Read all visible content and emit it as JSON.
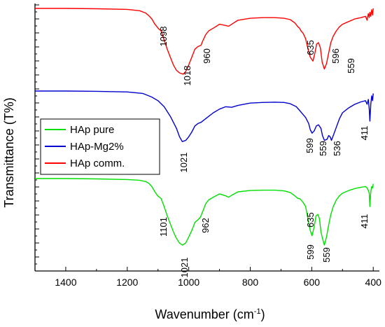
{
  "chart_data": {
    "type": "line",
    "xlabel": "Wavenumber (cm",
    "xlabel_sup": "-1",
    "xlabel_close": ")",
    "ylabel": "Transmittance (T%)",
    "xlim": [
      1500,
      380
    ],
    "x_reversed": true,
    "xticks": [
      1400,
      1200,
      1000,
      800,
      600,
      400
    ],
    "yticks_labeled": false,
    "grid": false,
    "legend_position": "left-middle",
    "series": [
      {
        "name": "HAp pure",
        "color": "#00e000",
        "peak_labels": [
          "1101",
          "1021",
          "962",
          "635",
          "599",
          "559",
          "411"
        ],
        "x": [
          1500,
          1400,
          1300,
          1200,
          1160,
          1140,
          1130,
          1120,
          1110,
          1101,
          1090,
          1080,
          1070,
          1060,
          1050,
          1040,
          1030,
          1021,
          1010,
          1000,
          990,
          980,
          970,
          962,
          955,
          945,
          935,
          920,
          900,
          880,
          870,
          860,
          840,
          800,
          760,
          720,
          690,
          670,
          655,
          645,
          640,
          635,
          628,
          620,
          612,
          605,
          599,
          592,
          586,
          580,
          575,
          570,
          565,
          559,
          552,
          545,
          538,
          530,
          520,
          510,
          500,
          480,
          460,
          440,
          425,
          420,
          416,
          413,
          411,
          408,
          405,
          402,
          400
        ],
        "y": [
          100,
          100,
          99.5,
          98.5,
          97.5,
          95.5,
          93,
          88,
          80,
          74,
          70,
          58,
          44,
          32,
          20,
          10,
          3,
          0,
          3,
          12,
          22,
          34,
          38,
          42,
          50,
          62,
          68,
          72,
          77,
          74,
          72,
          75,
          80,
          82,
          82.5,
          82.5,
          81.5,
          79,
          74,
          70,
          70,
          68,
          64,
          58,
          38,
          22,
          14,
          28,
          44,
          46,
          40,
          20,
          10,
          0,
          12,
          30,
          46,
          58,
          68,
          74,
          78,
          82,
          85,
          87,
          88,
          86,
          82,
          78,
          58,
          80,
          88,
          86,
          92
        ]
      },
      {
        "name": "HAp-Mg2%",
        "color": "#0000d0",
        "peak_labels": [
          "1021",
          "599",
          "559",
          "536",
          "411"
        ],
        "x": [
          1500,
          1400,
          1300,
          1200,
          1150,
          1120,
          1100,
          1080,
          1060,
          1040,
          1030,
          1021,
          1010,
          1000,
          990,
          980,
          970,
          960,
          940,
          920,
          900,
          880,
          860,
          840,
          800,
          760,
          720,
          690,
          670,
          650,
          640,
          630,
          620,
          610,
          605,
          599,
          592,
          585,
          578,
          570,
          565,
          559,
          550,
          545,
          540,
          536,
          530,
          520,
          510,
          500,
          480,
          460,
          440,
          425,
          420,
          416,
          413,
          411,
          408,
          405,
          402,
          400
        ],
        "y": [
          100,
          100,
          99.5,
          98.5,
          96,
          90,
          84,
          74,
          58,
          38,
          24,
          16,
          18,
          24,
          32,
          42,
          46,
          48,
          56,
          64,
          70,
          74,
          73,
          76,
          80,
          81,
          81.5,
          81,
          79,
          74,
          68,
          62,
          56,
          46,
          36,
          30,
          34,
          42,
          44,
          38,
          26,
          18,
          20,
          26,
          24,
          18,
          26,
          40,
          54,
          64,
          72,
          78,
          82,
          84,
          78,
          86,
          70,
          50,
          78,
          92,
          84,
          96
        ]
      },
      {
        "name": "HAp comm.",
        "color": "#ff0000",
        "peak_labels": [
          "1098",
          "1018",
          "960",
          "635",
          "596",
          "559"
        ],
        "x": [
          1500,
          1400,
          1300,
          1200,
          1160,
          1140,
          1130,
          1120,
          1110,
          1098,
          1090,
          1080,
          1070,
          1060,
          1050,
          1040,
          1030,
          1018,
          1010,
          1000,
          990,
          980,
          970,
          960,
          955,
          945,
          935,
          920,
          900,
          880,
          870,
          860,
          840,
          800,
          760,
          720,
          690,
          670,
          655,
          645,
          640,
          635,
          628,
          620,
          612,
          605,
          596,
          590,
          584,
          578,
          572,
          566,
          559,
          552,
          545,
          538,
          530,
          520,
          510,
          500,
          480,
          460,
          440,
          425,
          420,
          416,
          413,
          411,
          408,
          405,
          402,
          400
        ],
        "y": [
          100,
          100,
          99.5,
          98.5,
          96.5,
          93,
          89,
          84,
          76,
          69,
          66,
          52,
          38,
          26,
          14,
          6,
          2,
          0,
          4,
          14,
          26,
          38,
          42,
          44,
          50,
          60,
          66,
          70,
          76,
          74,
          73,
          76,
          82,
          85,
          86,
          86,
          85,
          83,
          78,
          72,
          70,
          66,
          62,
          54,
          38,
          26,
          20,
          32,
          46,
          48,
          40,
          18,
          8,
          16,
          32,
          48,
          58,
          66,
          72,
          76,
          80,
          84,
          86,
          88,
          82,
          92,
          86,
          94,
          88,
          98,
          90,
          100
        ]
      }
    ]
  }
}
